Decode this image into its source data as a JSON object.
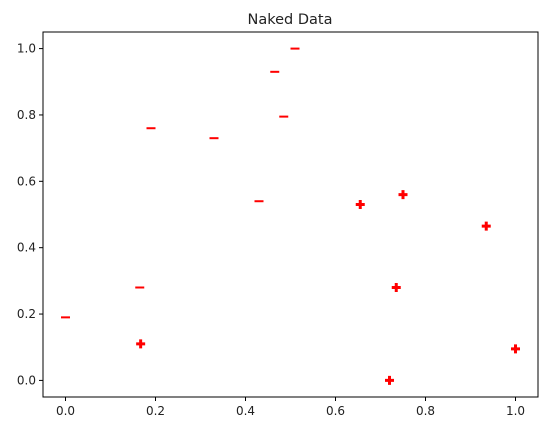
{
  "chart_data": {
    "type": "scatter",
    "title": "Naked Data",
    "xlabel": "",
    "ylabel": "",
    "xlim": [
      -0.05,
      1.05
    ],
    "ylim": [
      -0.05,
      1.05
    ],
    "x_ticks": [
      0.0,
      0.2,
      0.4,
      0.6,
      0.8,
      1.0
    ],
    "x_tick_labels": [
      "0.0",
      "0.2",
      "0.4",
      "0.6",
      "0.8",
      "1.0"
    ],
    "y_ticks": [
      0.0,
      0.2,
      0.4,
      0.6,
      0.8,
      1.0
    ],
    "y_tick_labels": [
      "0.0",
      "0.2",
      "0.4",
      "0.6",
      "0.8",
      "1.0"
    ],
    "grid": false,
    "marker_color": "#ff0000",
    "series": [
      {
        "marker": "minus",
        "points": [
          {
            "x": 0.0,
            "y": 0.19
          },
          {
            "x": 0.165,
            "y": 0.28
          },
          {
            "x": 0.19,
            "y": 0.76
          },
          {
            "x": 0.33,
            "y": 0.73
          },
          {
            "x": 0.43,
            "y": 0.54
          },
          {
            "x": 0.465,
            "y": 0.93
          },
          {
            "x": 0.485,
            "y": 0.795
          },
          {
            "x": 0.51,
            "y": 1.0
          }
        ]
      },
      {
        "marker": "plus",
        "points": [
          {
            "x": 0.167,
            "y": 0.11
          },
          {
            "x": 0.655,
            "y": 0.53
          },
          {
            "x": 0.72,
            "y": 0.0
          },
          {
            "x": 0.735,
            "y": 0.28
          },
          {
            "x": 0.75,
            "y": 0.56
          },
          {
            "x": 0.935,
            "y": 0.465
          },
          {
            "x": 1.0,
            "y": 0.095
          }
        ]
      }
    ]
  }
}
